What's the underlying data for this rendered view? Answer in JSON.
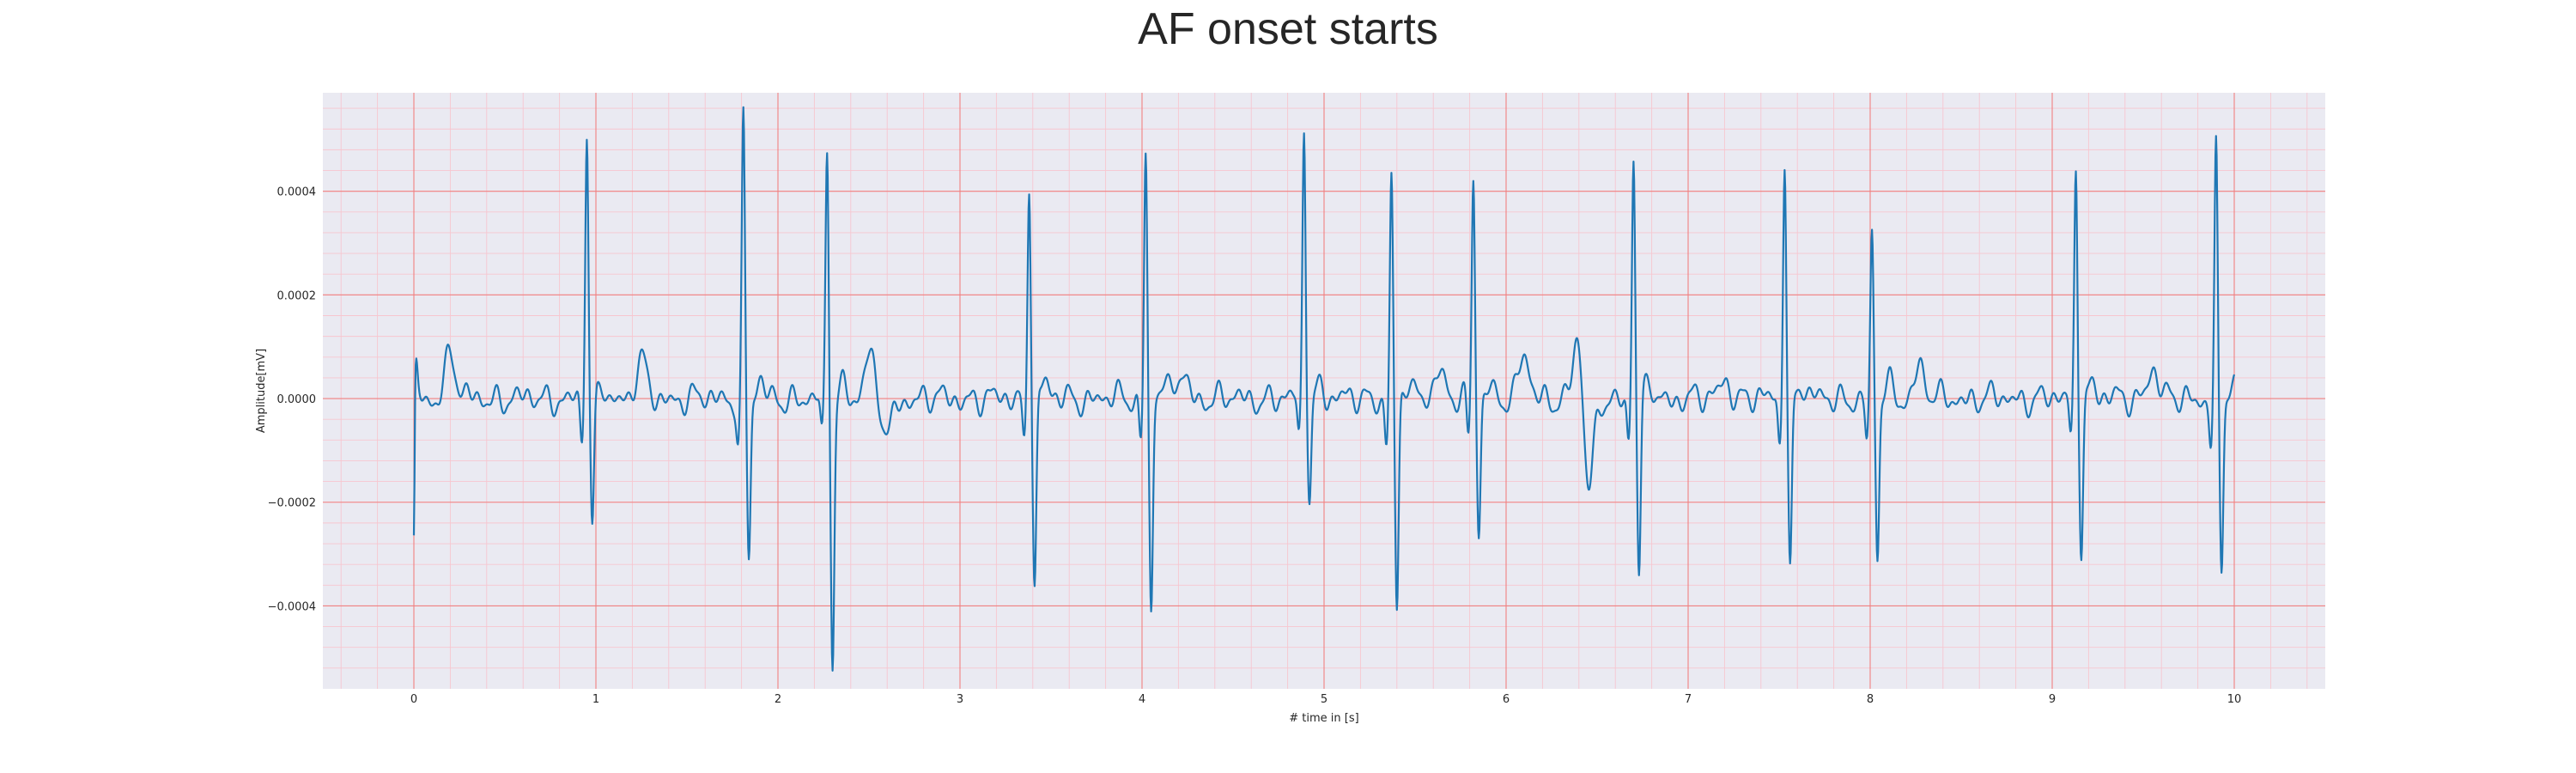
{
  "chart_data": {
    "type": "line",
    "title": "AF onset starts",
    "xlabel": "# time in [s]",
    "ylabel": "Amplitude[mV]",
    "xlim": [
      -0.5,
      10.5
    ],
    "ylim": [
      -0.00056,
      0.00059
    ],
    "xticks": [
      0,
      1,
      2,
      3,
      4,
      5,
      6,
      7,
      8,
      9,
      10
    ],
    "xtick_labels": [
      "0",
      "1",
      "2",
      "3",
      "4",
      "5",
      "6",
      "7",
      "8",
      "9",
      "10"
    ],
    "yticks": [
      -0.0004,
      -0.0002,
      0.0,
      0.0002,
      0.0004
    ],
    "ytick_labels": [
      "−0.0004",
      "−0.0002",
      "0.0000",
      "0.0002",
      "0.0004"
    ],
    "grid": {
      "major": true,
      "minor": true,
      "major_color": "#f08080",
      "minor_color": "#f7c6cf"
    },
    "background_color": "#eaeaf2",
    "series": [
      {
        "color": "#1f77b4",
        "beats": [
          {
            "t": 0.0,
            "r": -0.0003,
            "s": 5e-05
          },
          {
            "t": 0.95,
            "r": 0.00051,
            "s": -0.00026
          },
          {
            "t": 1.81,
            "r": 0.00054,
            "s": -0.00031
          },
          {
            "t": 2.27,
            "r": 0.00048,
            "s": -0.00051
          },
          {
            "t": 3.38,
            "r": 0.00043,
            "s": -0.00036
          },
          {
            "t": 4.02,
            "r": 0.00048,
            "s": -0.00041
          },
          {
            "t": 4.89,
            "r": 0.00053,
            "s": -0.00019
          },
          {
            "t": 5.37,
            "r": 0.00043,
            "s": -0.00042
          },
          {
            "t": 5.82,
            "r": 0.00042,
            "s": -0.00026
          },
          {
            "t": 6.7,
            "r": 0.00047,
            "s": -0.00035
          },
          {
            "t": 7.53,
            "r": 0.00047,
            "s": -0.00034
          },
          {
            "t": 8.01,
            "r": 0.00031,
            "s": -0.00031
          },
          {
            "t": 9.13,
            "r": 0.00046,
            "s": -0.00029
          },
          {
            "t": 9.9,
            "r": 0.00048,
            "s": -0.00034
          }
        ],
        "waves": [
          {
            "t": 0.2,
            "a": 9e-05
          },
          {
            "t": 1.25,
            "a": 7e-05
          },
          {
            "t": 2.5,
            "a": 8e-05
          },
          {
            "t": 2.6,
            "a": -7e-05
          },
          {
            "t": 4.22,
            "a": 5e-05
          },
          {
            "t": 5.63,
            "a": 6e-05
          },
          {
            "t": 6.1,
            "a": 8e-05
          },
          {
            "t": 6.4,
            "a": 0.00014
          },
          {
            "t": 6.45,
            "a": -0.0002
          },
          {
            "t": 7.2,
            "a": 4e-05
          },
          {
            "t": 8.27,
            "a": 6e-05
          },
          {
            "t": 9.55,
            "a": 6e-05
          }
        ]
      }
    ]
  }
}
